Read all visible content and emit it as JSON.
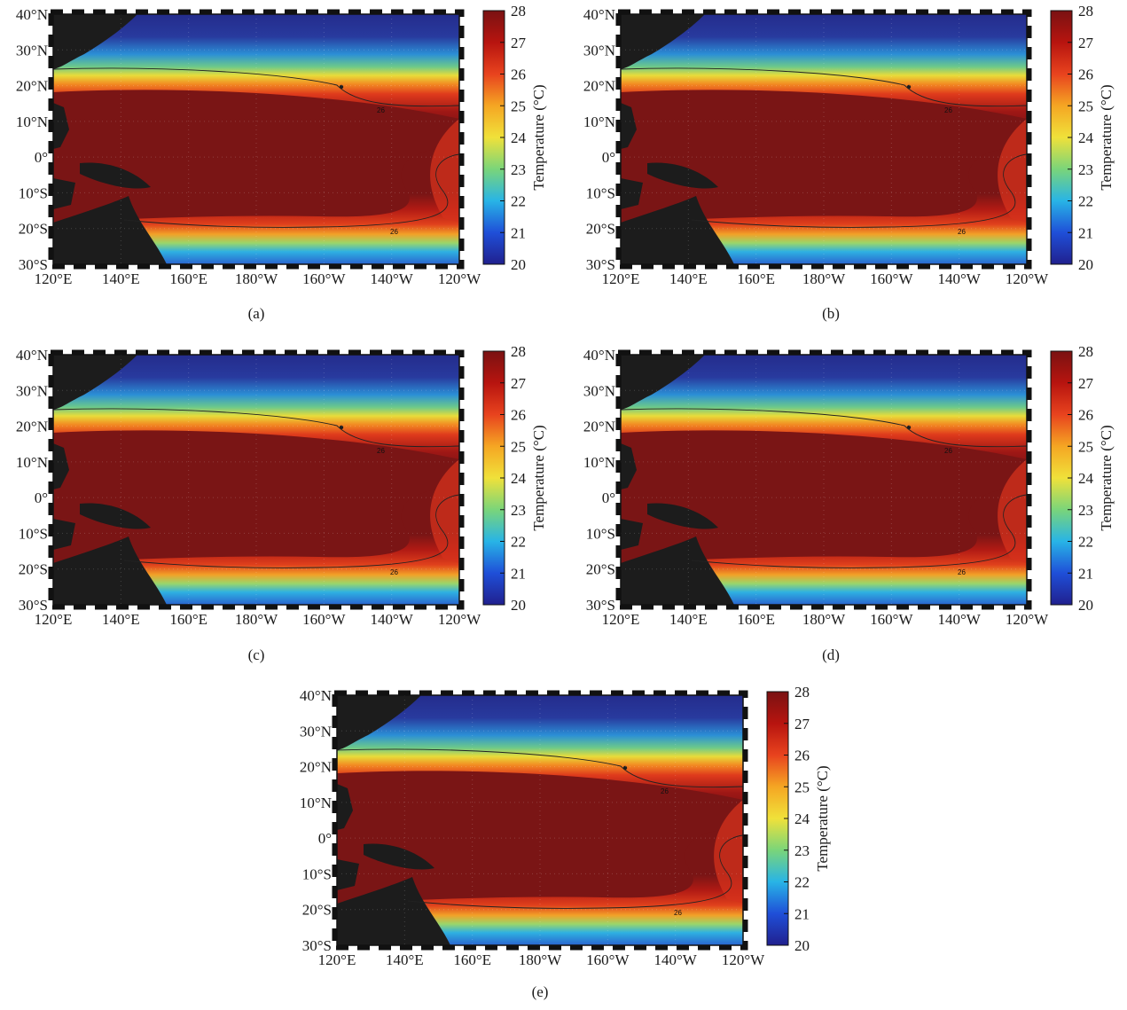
{
  "figure": {
    "colorbar": {
      "label": "Temperature (°C)",
      "ticks": [
        "28",
        "27",
        "26",
        "25",
        "24",
        "23",
        "22",
        "21",
        "20"
      ],
      "min": 20,
      "max": 28,
      "colormap": [
        "#20208e",
        "#1f4fd8",
        "#28b4e6",
        "#7ad57a",
        "#f0e13a",
        "#f5a623",
        "#e8431e",
        "#b7140f",
        "#7a1212"
      ]
    },
    "lat_ticks": [
      "40°N",
      "30°N",
      "20°N",
      "10°N",
      "0°",
      "10°S",
      "20°S",
      "30°S"
    ],
    "lon_ticks": [
      "120°E",
      "140°E",
      "160°E",
      "180°W",
      "160°W",
      "140°W",
      "120°W"
    ],
    "contour_label": "26",
    "panels": [
      {
        "caption": "(a)"
      },
      {
        "caption": "(b)"
      },
      {
        "caption": "(c)"
      },
      {
        "caption": "(d)"
      },
      {
        "caption": "(e)"
      }
    ]
  },
  "colors": {
    "land": "#1c1c1c",
    "cold": "#242c8c",
    "warm_pool": "#7a1515"
  }
}
